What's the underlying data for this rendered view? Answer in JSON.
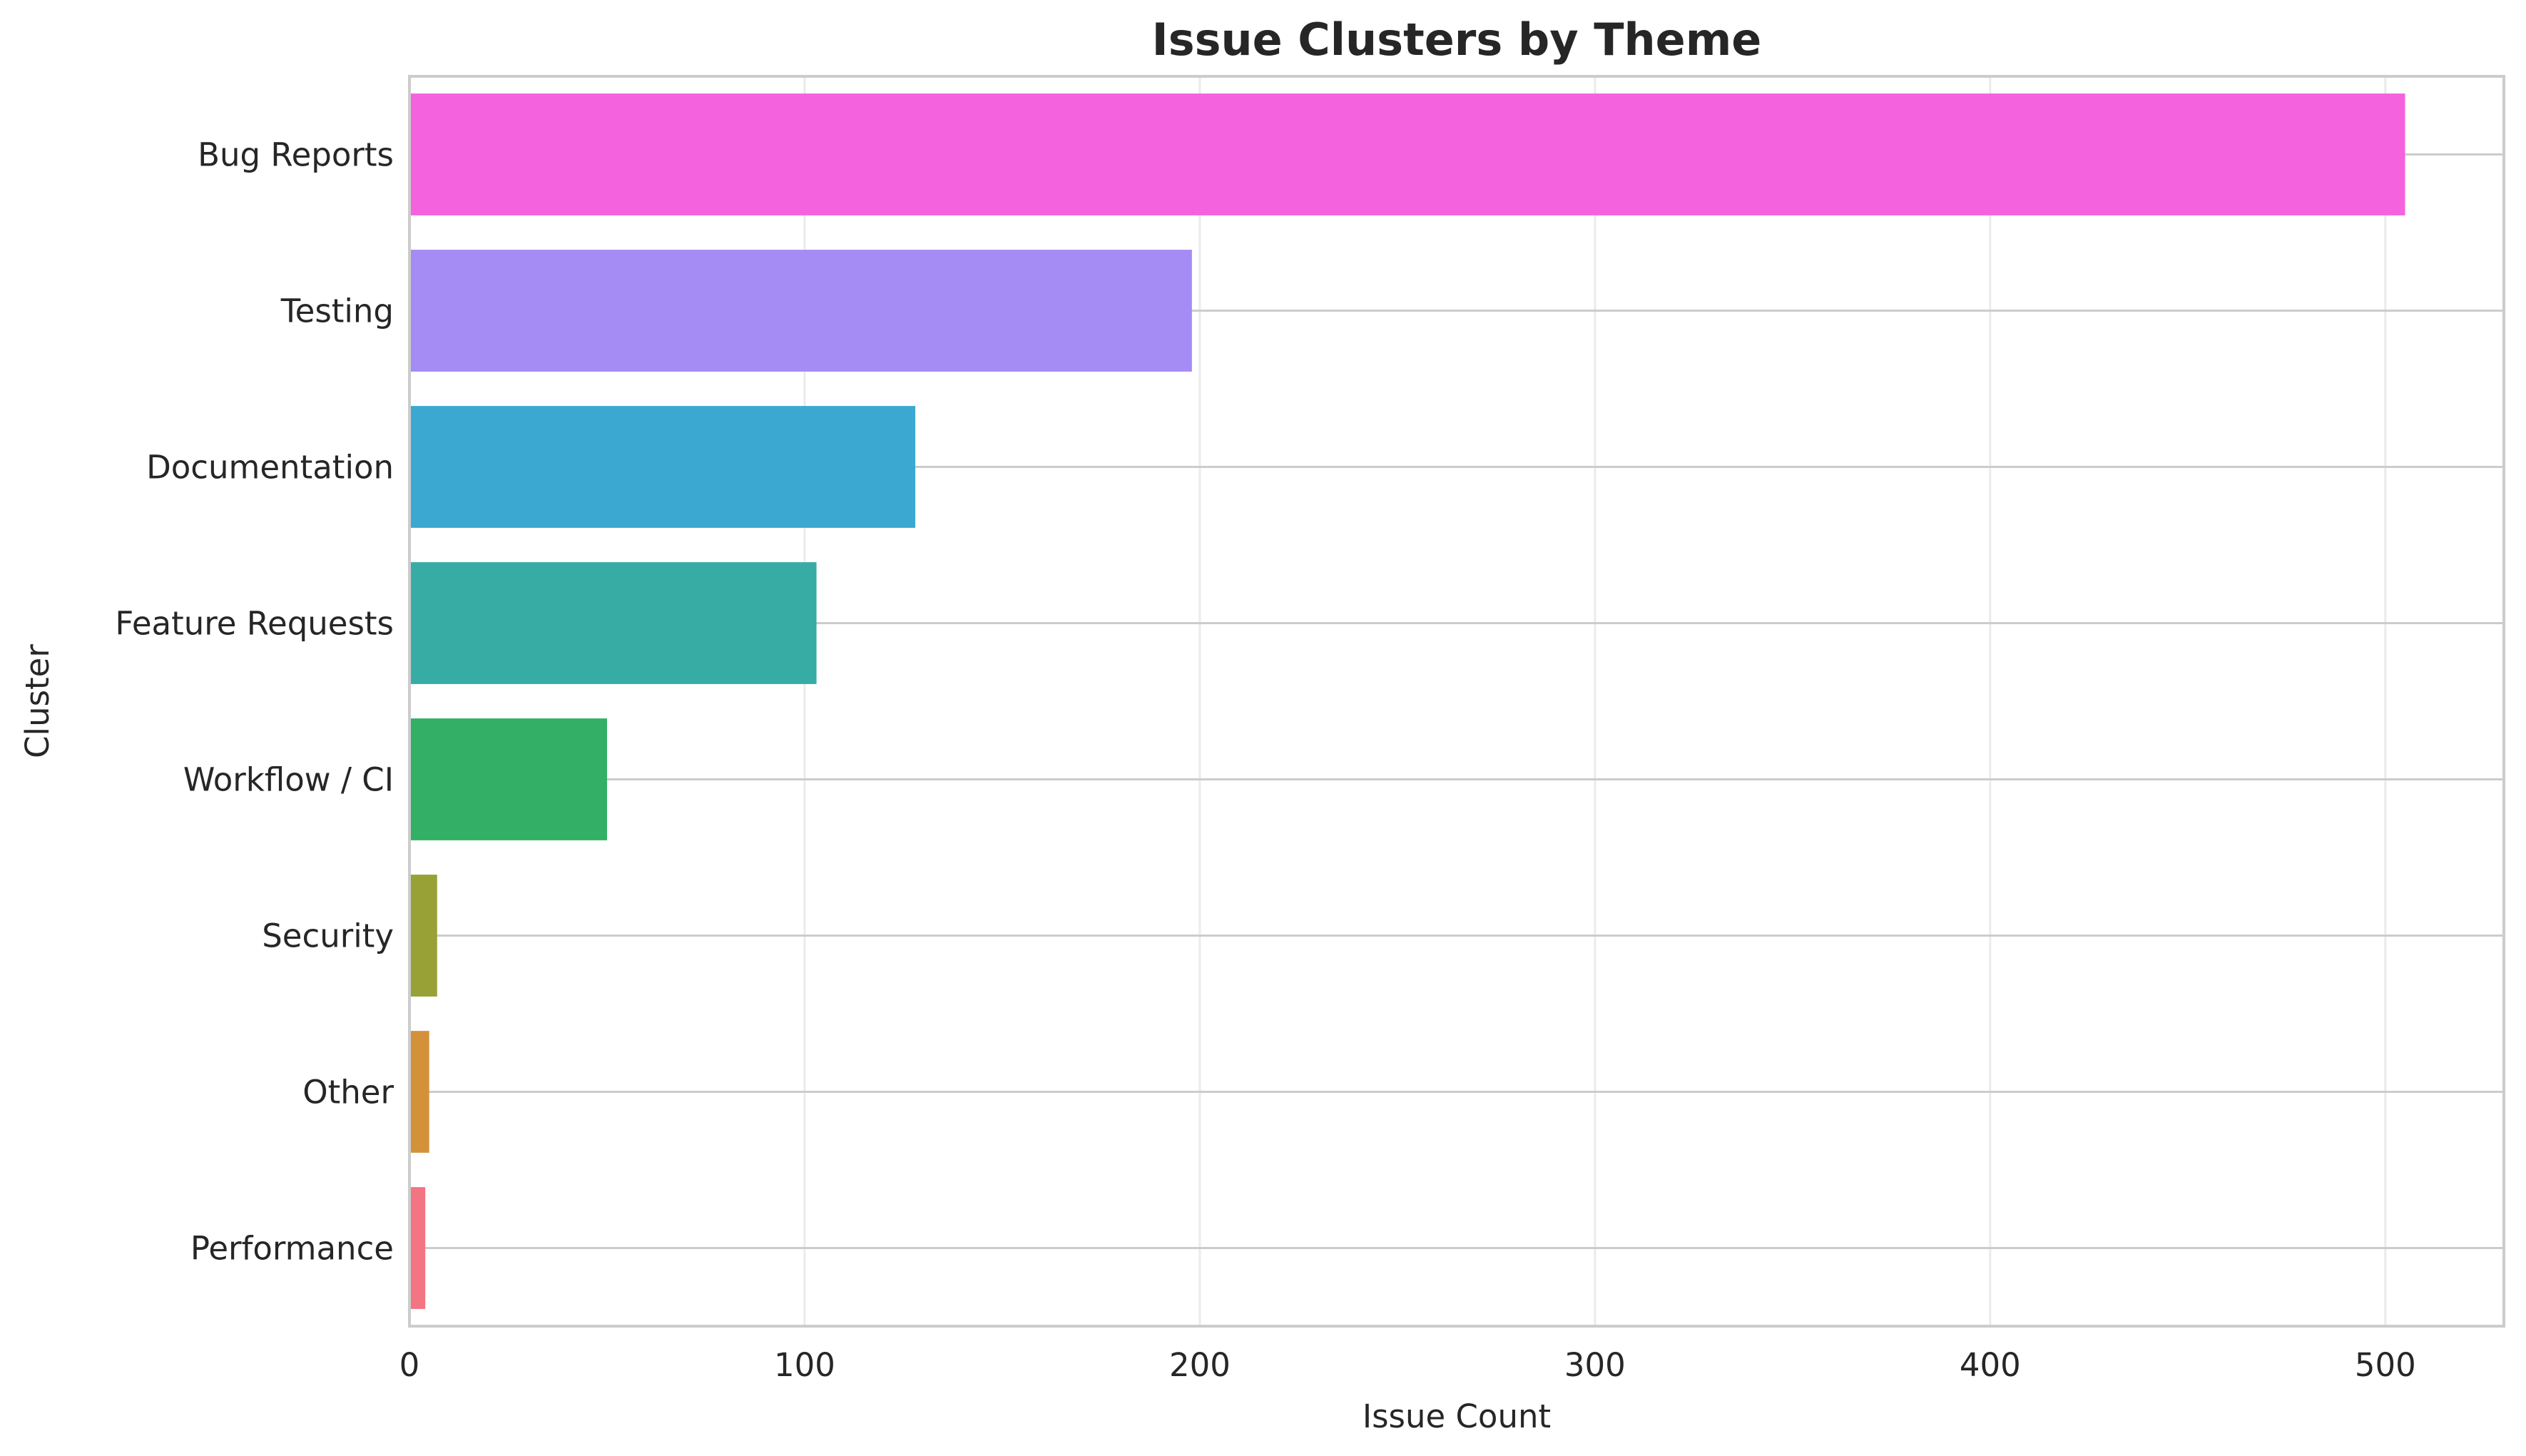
{
  "chart_data": {
    "type": "bar",
    "orientation": "horizontal",
    "title": "Issue Clusters by Theme",
    "xlabel": "Issue Count",
    "ylabel": "Cluster",
    "categories": [
      "Bug Reports",
      "Testing",
      "Documentation",
      "Feature Requests",
      "Workflow / CI",
      "Security",
      "Other",
      "Performance"
    ],
    "values": [
      505,
      198,
      128,
      103,
      50,
      7,
      5,
      4
    ],
    "colors": [
      "#f562dd",
      "#a58bf4",
      "#3ba8d1",
      "#37aca4",
      "#33b065",
      "#97a135",
      "#d3923a",
      "#f37482"
    ],
    "xlim": [
      0,
      530
    ],
    "xticks": [
      0,
      100,
      200,
      300,
      400,
      500
    ],
    "grid": true,
    "legend": "none"
  }
}
